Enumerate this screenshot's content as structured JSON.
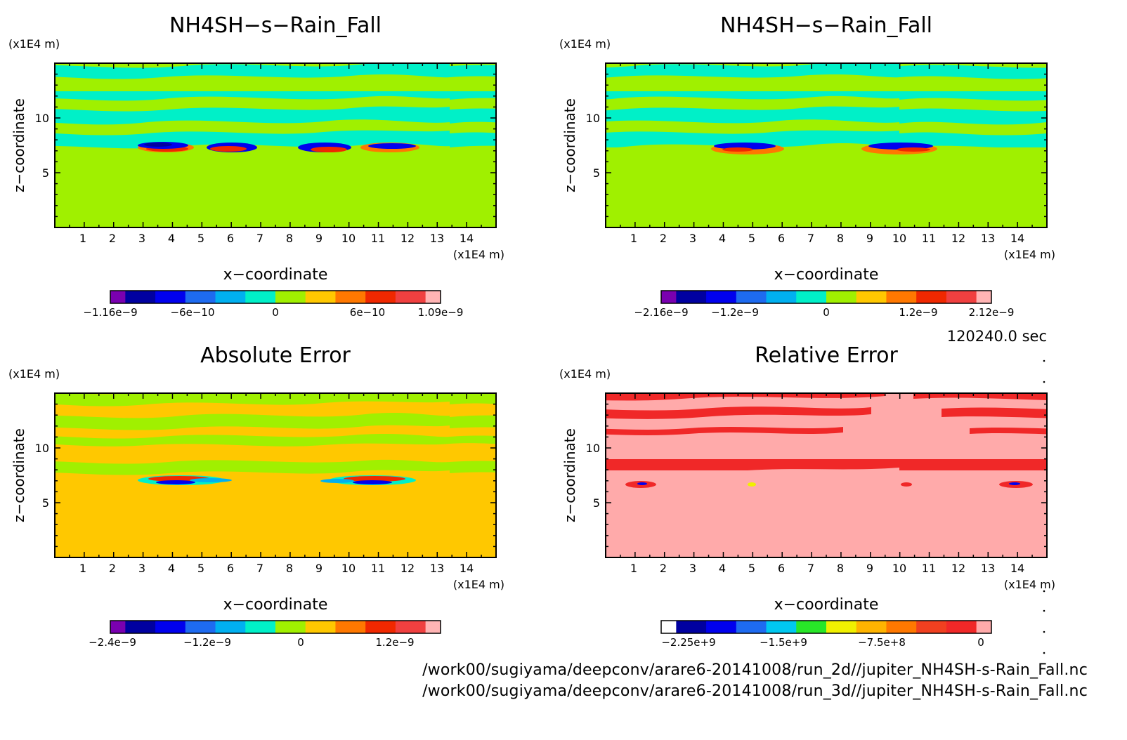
{
  "time_label": "120240.0 sec",
  "source_paths": [
    "/work00/sugiyama/deepconv/arare6-20141008/run_2d//jupiter_NH4SH-s-Rain_Fall.nc",
    "/work00/sugiyama/deepconv/arare6-20141008/run_3d//jupiter_NH4SH-s-Rain_Fall.nc"
  ],
  "chart_data": [
    {
      "type": "heatmap",
      "title": "NH4SH−s−Rain_Fall",
      "xlabel": "x−coordinate",
      "ylabel": "z−coordinate",
      "x_unit": "(x1E4 m)",
      "y_unit": "(x1E4 m)",
      "xlim": [
        0,
        15
      ],
      "ylim": [
        0,
        15
      ],
      "xticks": [
        1,
        2,
        3,
        4,
        5,
        6,
        7,
        8,
        9,
        10,
        11,
        12,
        13,
        14
      ],
      "yticks": [
        5,
        10
      ],
      "background_level": 0,
      "upper_band_level": "cyan",
      "colorbar": {
        "colors": [
          "#7a00b0",
          "#0000a0",
          "#0000ee",
          "#1e6bf0",
          "#00b0f0",
          "#00f0c8",
          "#a0f000",
          "#ffc800",
          "#ff7800",
          "#f02800",
          "#f04040",
          "#ffb4b4"
        ],
        "tick_labels": [
          "−1.16e−9",
          "−6e−10",
          "0",
          "6e−10",
          "1.09e−9"
        ]
      }
    },
    {
      "type": "heatmap",
      "title": "NH4SH−s−Rain_Fall",
      "xlabel": "x−coordinate",
      "ylabel": "z−coordinate",
      "x_unit": "(x1E4 m)",
      "y_unit": "(x1E4 m)",
      "xlim": [
        0,
        15
      ],
      "ylim": [
        0,
        15
      ],
      "xticks": [
        1,
        2,
        3,
        4,
        5,
        6,
        7,
        8,
        9,
        10,
        11,
        12,
        13,
        14
      ],
      "yticks": [
        5,
        10
      ],
      "background_level": 0,
      "colorbar": {
        "colors": [
          "#7a00b0",
          "#0000a0",
          "#0000ee",
          "#1e6bf0",
          "#00b0f0",
          "#00f0c8",
          "#a0f000",
          "#ffc800",
          "#ff7800",
          "#f02800",
          "#f04040",
          "#ffb4b4"
        ],
        "tick_labels": [
          "−2.16e−9",
          "−1.2e−9",
          "0",
          "1.2e−9",
          "2.12e−9"
        ]
      }
    },
    {
      "type": "heatmap",
      "title": "Absolute Error",
      "xlabel": "x−coordinate",
      "ylabel": "z−coordinate",
      "x_unit": "(x1E4 m)",
      "y_unit": "(x1E4 m)",
      "xlim": [
        0,
        15
      ],
      "ylim": [
        0,
        15
      ],
      "xticks": [
        1,
        2,
        3,
        4,
        5,
        6,
        7,
        8,
        9,
        10,
        11,
        12,
        13,
        14
      ],
      "yticks": [
        5,
        10
      ],
      "background_level": 0,
      "colorbar": {
        "colors": [
          "#7a00b0",
          "#0000a0",
          "#0000ee",
          "#1e6bf0",
          "#00b0f0",
          "#00f0c8",
          "#a0f000",
          "#ffc800",
          "#ff7800",
          "#f02800",
          "#f04040",
          "#ffb4b4"
        ],
        "tick_labels": [
          "−2.4e−9",
          "−1.2e−9",
          "0",
          "1.2e−9"
        ]
      }
    },
    {
      "type": "heatmap",
      "title": "Relative Error",
      "xlabel": "x−coordinate",
      "ylabel": "z−coordinate",
      "x_unit": "(x1E4 m)",
      "y_unit": "(x1E4 m)",
      "xlim": [
        0,
        15
      ],
      "ylim": [
        0,
        15
      ],
      "xticks": [
        1,
        2,
        3,
        4,
        5,
        6,
        7,
        8,
        9,
        10,
        11,
        12,
        13,
        14
      ],
      "yticks": [
        5,
        10
      ],
      "background_level": 0,
      "colorbar": {
        "colors": [
          "#ffffff",
          "#0000a0",
          "#0000ee",
          "#1e6bf0",
          "#00c8f0",
          "#28e628",
          "#f0f000",
          "#ffb400",
          "#ff7800",
          "#f04020",
          "#f02828",
          "#ffaaaa"
        ],
        "tick_labels": [
          "−2.25e+9",
          "−1.5e+9",
          "−7.5e+8",
          "0"
        ]
      }
    }
  ]
}
